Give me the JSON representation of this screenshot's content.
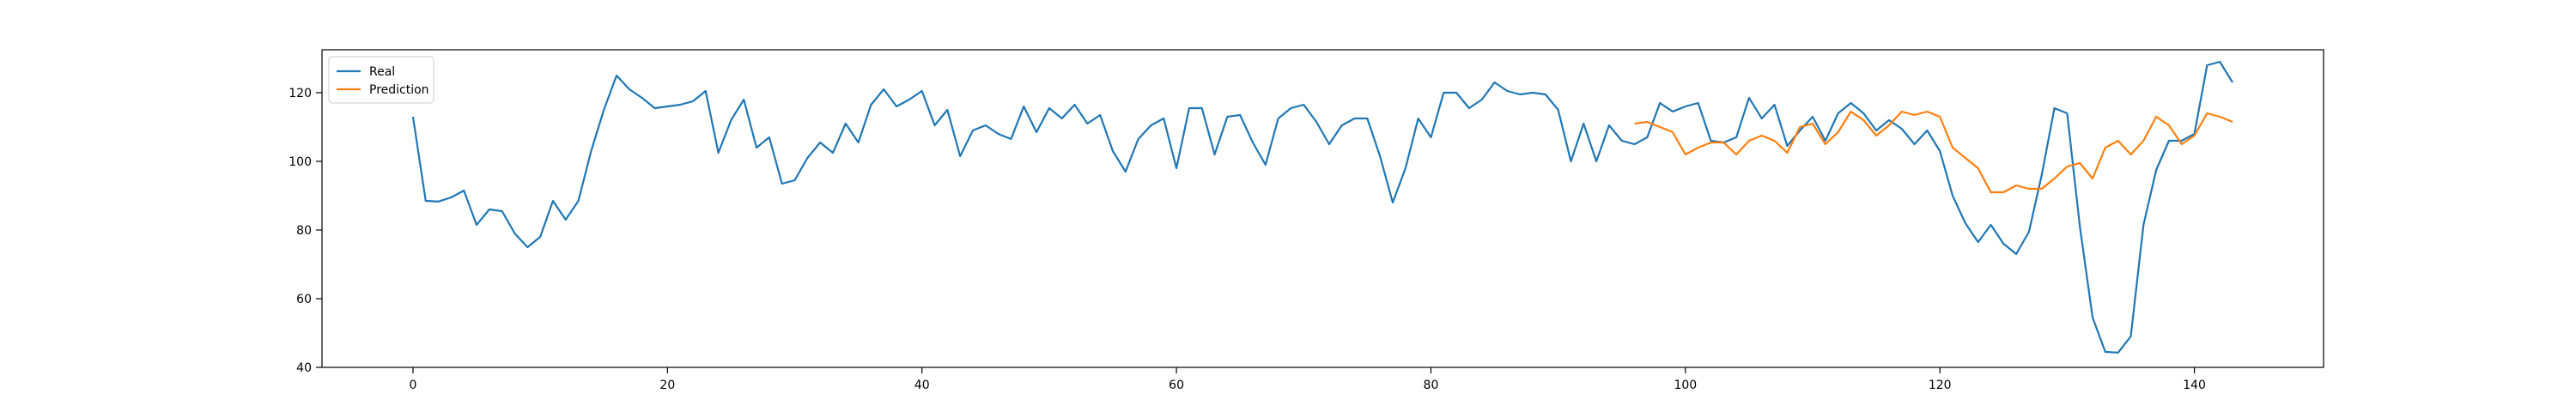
{
  "chart_data": {
    "type": "line",
    "title": "",
    "xlabel": "",
    "ylabel": "",
    "xlim": [
      -7.15,
      150.15
    ],
    "ylim": [
      40,
      132.5
    ],
    "xticks": [
      0,
      20,
      40,
      60,
      80,
      100,
      120,
      140
    ],
    "yticks": [
      40,
      60,
      80,
      100,
      120
    ],
    "grid": false,
    "legend_position": "upper-left",
    "series": [
      {
        "name": "Real",
        "color": "#1f77b4",
        "x_start": 0,
        "values": [
          113,
          88.5,
          88.3,
          89.5,
          91.5,
          81.5,
          86,
          85.5,
          79,
          75,
          78,
          88.5,
          83,
          88.5,
          103,
          115,
          125,
          121,
          118.5,
          115.5,
          116,
          116.5,
          117.5,
          120.5,
          102.5,
          112,
          118,
          104,
          107,
          93.5,
          94.5,
          101,
          105.5,
          102.5,
          111,
          105.5,
          116.5,
          121,
          116,
          118,
          120.5,
          110.5,
          115,
          101.5,
          109,
          110.5,
          108,
          106.5,
          116,
          108.5,
          115.5,
          112.5,
          116.5,
          111,
          113.5,
          103,
          97,
          106.5,
          110.5,
          112.5,
          98,
          115.5,
          115.5,
          102,
          113,
          113.5,
          105.5,
          99,
          112.5,
          115.5,
          116.5,
          111.5,
          105,
          110.5,
          112.5,
          112.5,
          101.5,
          88,
          98,
          112.5,
          107,
          120,
          120,
          115.5,
          118,
          123,
          120.5,
          119.5,
          120,
          119.5,
          115,
          100,
          111,
          100,
          110.5,
          106,
          105,
          107,
          117,
          114.5,
          116,
          117,
          106,
          105.5,
          107,
          118.5,
          112.5,
          116.5,
          104.5,
          109,
          113,
          106,
          114,
          117,
          114,
          109,
          112,
          109.5,
          105,
          109,
          103,
          90,
          82,
          76.5,
          81.5,
          76,
          73,
          79.5,
          96,
          115.5,
          114,
          81,
          54.5,
          44.5,
          44.3,
          49,
          81.5,
          97.5,
          106,
          106,
          108,
          128,
          129,
          123
        ]
      },
      {
        "name": "Prediction",
        "color": "#ff7f0e",
        "x_start": 96,
        "values": [
          111,
          111.5,
          110,
          108.5,
          102,
          104,
          105.5,
          105.5,
          102,
          106,
          107.5,
          106,
          102.5,
          110,
          111,
          105,
          108.5,
          114.5,
          112,
          107.5,
          110.5,
          114.5,
          113.5,
          114.5,
          113,
          104,
          101,
          98,
          91,
          91,
          93,
          92,
          92,
          95,
          98.5,
          99.5,
          95,
          104,
          106,
          102,
          106,
          113,
          110.5,
          105,
          107.5,
          114,
          113,
          111.5
        ]
      }
    ]
  }
}
